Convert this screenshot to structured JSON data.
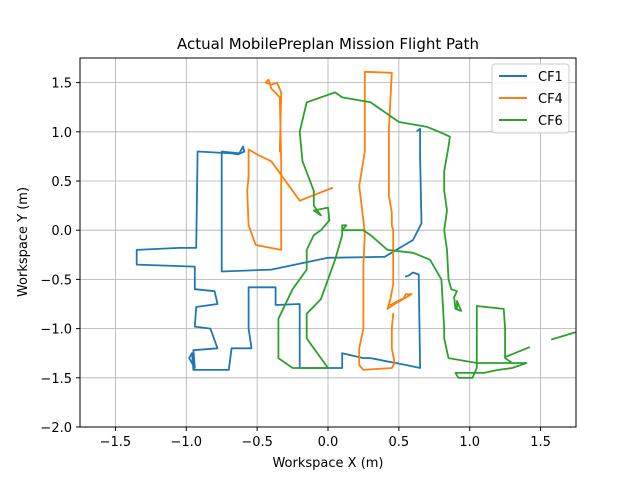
{
  "chart_data": {
    "type": "line",
    "title": "Actual MobilePreplan Mission Flight Path",
    "xlabel": "Workspace X (m)",
    "ylabel": "Workspace Y (m)",
    "xlim": [
      -1.75,
      1.75
    ],
    "ylim": [
      -2.0,
      1.75
    ],
    "xticks": [
      -1.5,
      -1.0,
      -0.5,
      0.0,
      0.5,
      1.0,
      1.5
    ],
    "xtick_labels": [
      "−1.5",
      "−1.0",
      "−0.5",
      "0.0",
      "0.5",
      "1.0",
      "1.5"
    ],
    "yticks": [
      -2.0,
      -1.5,
      -1.0,
      -0.5,
      0.0,
      0.5,
      1.0,
      1.5
    ],
    "ytick_labels": [
      "−2.0",
      "−1.5",
      "−1.0",
      "−0.5",
      "0.0",
      "0.5",
      "1.0",
      "1.5"
    ],
    "grid": true,
    "legend": "top-right",
    "series": [
      {
        "name": "CF1",
        "color": "#1f77b4",
        "segments": [
          [
            [
              0.63,
              1.01
            ],
            [
              0.65,
              1.03
            ],
            [
              0.65,
              0.74
            ],
            [
              0.66,
              0.07
            ],
            [
              0.6,
              -0.1
            ],
            [
              0.4,
              -0.27
            ],
            [
              0.0,
              -0.28
            ],
            [
              -0.4,
              -0.4
            ],
            [
              -0.75,
              -0.42
            ],
            [
              -0.75,
              0.6
            ],
            [
              -0.75,
              0.62
            ],
            [
              -0.75,
              0.8
            ],
            [
              -0.62,
              0.78
            ],
            [
              -0.59,
              0.8
            ],
            [
              -0.6,
              0.85
            ],
            [
              -0.63,
              0.77
            ],
            [
              -0.68,
              0.78
            ],
            [
              -0.92,
              0.8
            ],
            [
              -0.93,
              -0.18
            ],
            [
              -1.05,
              -0.18
            ],
            [
              -1.35,
              -0.2
            ],
            [
              -1.35,
              -0.35
            ],
            [
              -0.94,
              -0.37
            ],
            [
              -0.94,
              -0.6
            ],
            [
              -0.8,
              -0.62
            ],
            [
              -0.78,
              -0.75
            ],
            [
              -0.93,
              -0.78
            ],
            [
              -0.94,
              -0.98
            ],
            [
              -0.83,
              -1.0
            ],
            [
              -0.78,
              -1.2
            ],
            [
              -0.95,
              -1.22
            ],
            [
              -0.94,
              -1.4
            ],
            [
              -0.98,
              -1.3
            ],
            [
              -0.96,
              -1.25
            ],
            [
              -0.95,
              -1.42
            ],
            [
              -0.7,
              -1.42
            ],
            [
              -0.68,
              -1.2
            ],
            [
              -0.54,
              -1.2
            ],
            [
              -0.56,
              -1.0
            ],
            [
              -0.56,
              -0.58
            ],
            [
              -0.37,
              -0.58
            ],
            [
              -0.37,
              -0.76
            ],
            [
              -0.2,
              -0.75
            ],
            [
              -0.2,
              -1.4
            ],
            [
              0.1,
              -1.4
            ],
            [
              0.1,
              -1.25
            ],
            [
              0.25,
              -1.3
            ],
            [
              0.3,
              -1.3
            ],
            [
              0.55,
              -1.37
            ],
            [
              0.65,
              -1.4
            ],
            [
              0.64,
              -0.45
            ],
            [
              0.6,
              -0.43
            ],
            [
              0.57,
              -0.46
            ],
            [
              0.55,
              -0.47
            ]
          ]
        ]
      },
      {
        "name": "CF4",
        "color": "#ff7f0e",
        "segments": [
          [
            [
              0.03,
              0.43
            ],
            [
              -0.2,
              0.3
            ],
            [
              -0.4,
              0.7
            ],
            [
              -0.5,
              0.77
            ],
            [
              -0.56,
              0.82
            ],
            [
              -0.56,
              0.55
            ],
            [
              -0.57,
              0.4
            ],
            [
              -0.56,
              0.05
            ],
            [
              -0.51,
              -0.15
            ],
            [
              -0.33,
              -0.2
            ],
            [
              -0.33,
              0.7
            ],
            [
              -0.34,
              1.35
            ],
            [
              -0.4,
              1.44
            ],
            [
              -0.42,
              1.53
            ],
            [
              -0.44,
              1.5
            ],
            [
              -0.4,
              1.48
            ],
            [
              -0.36,
              1.5
            ],
            [
              -0.33,
              1.4
            ],
            [
              -0.34,
              0.8
            ]
          ],
          [
            [
              0.52,
              -0.7
            ],
            [
              0.44,
              -0.76
            ],
            [
              0.53,
              -0.7
            ],
            [
              0.55,
              -0.65
            ],
            [
              0.59,
              -0.65
            ],
            [
              0.53,
              -0.7
            ],
            [
              0.47,
              -0.75
            ],
            [
              0.42,
              -0.8
            ],
            [
              0.44,
              -0.7
            ],
            [
              0.46,
              -0.55
            ],
            [
              0.46,
              -0.45
            ],
            [
              0.46,
              -0.35
            ],
            [
              0.46,
              -0.25
            ],
            [
              0.46,
              -0.1
            ],
            [
              0.46,
              0.0
            ],
            [
              0.45,
              0.05
            ],
            [
              0.45,
              0.18
            ],
            [
              0.43,
              0.35
            ],
            [
              0.43,
              0.6
            ],
            [
              0.43,
              0.8
            ],
            [
              0.43,
              1.03
            ],
            [
              0.45,
              1.6
            ],
            [
              0.26,
              1.61
            ],
            [
              0.26,
              1.2
            ],
            [
              0.26,
              0.8
            ],
            [
              0.22,
              0.45
            ],
            [
              0.25,
              0.1
            ],
            [
              0.26,
              -0.05
            ],
            [
              0.25,
              -0.35
            ],
            [
              0.25,
              -0.6
            ],
            [
              0.25,
              -1.0
            ],
            [
              0.22,
              -1.2
            ],
            [
              0.22,
              -1.37
            ],
            [
              0.25,
              -1.42
            ],
            [
              0.45,
              -1.4
            ],
            [
              0.47,
              -1.35
            ],
            [
              0.45,
              -1.2
            ],
            [
              0.45,
              -1.0
            ],
            [
              0.46,
              -0.85
            ]
          ]
        ]
      },
      {
        "name": "CF6",
        "color": "#2ca02c",
        "segments": [
          [
            [
              0.91,
              -0.8
            ],
            [
              0.91,
              -0.72
            ],
            [
              0.94,
              -0.82
            ],
            [
              0.9,
              -0.8
            ],
            [
              0.89,
              -0.68
            ],
            [
              0.91,
              -0.62
            ],
            [
              0.87,
              -0.6
            ],
            [
              0.85,
              -0.5
            ],
            [
              0.84,
              -0.2
            ],
            [
              0.82,
              0.0
            ],
            [
              0.84,
              0.2
            ],
            [
              0.82,
              0.4
            ],
            [
              0.82,
              0.6
            ],
            [
              0.85,
              0.85
            ],
            [
              0.86,
              0.95
            ],
            [
              0.8,
              0.99
            ],
            [
              0.7,
              1.05
            ],
            [
              0.5,
              1.1
            ],
            [
              0.3,
              1.3
            ],
            [
              0.1,
              1.35
            ],
            [
              0.05,
              1.4
            ],
            [
              -0.15,
              1.3
            ],
            [
              -0.2,
              1.0
            ],
            [
              -0.18,
              0.7
            ],
            [
              -0.1,
              0.4
            ],
            [
              -0.1,
              0.25
            ],
            [
              -0.05,
              0.15
            ],
            [
              -0.1,
              0.2
            ],
            [
              0.0,
              0.23
            ],
            [
              0.01,
              0.1
            ],
            [
              -0.05,
              0.0
            ],
            [
              -0.1,
              -0.05
            ],
            [
              -0.15,
              -0.2
            ],
            [
              -0.15,
              -0.4
            ],
            [
              -0.25,
              -0.6
            ],
            [
              -0.35,
              -0.9
            ],
            [
              -0.35,
              -1.3
            ],
            [
              -0.25,
              -1.4
            ],
            [
              -0.1,
              -1.4
            ],
            [
              -0.05,
              -1.4
            ],
            [
              0.0,
              -1.4
            ],
            [
              -0.05,
              -1.3
            ],
            [
              -0.1,
              -1.2
            ],
            [
              -0.15,
              -1.1
            ],
            [
              -0.15,
              -0.85
            ],
            [
              -0.05,
              -0.7
            ],
            [
              0.0,
              -0.5
            ],
            [
              0.05,
              -0.3
            ],
            [
              0.1,
              -0.05
            ],
            [
              0.1,
              0.0
            ],
            [
              0.1,
              0.05
            ],
            [
              0.13,
              0.05
            ],
            [
              0.1,
              0.0
            ],
            [
              0.25,
              0.0
            ],
            [
              0.3,
              -0.05
            ],
            [
              0.42,
              -0.2
            ],
            [
              0.6,
              -0.23
            ],
            [
              0.72,
              -0.3
            ],
            [
              0.8,
              -0.5
            ],
            [
              0.82,
              -1.0
            ],
            [
              0.82,
              -1.1
            ],
            [
              0.85,
              -1.3
            ],
            [
              1.05,
              -1.35
            ],
            [
              1.05,
              -1.4
            ],
            [
              1.02,
              -1.5
            ],
            [
              0.92,
              -1.5
            ],
            [
              0.9,
              -1.45
            ],
            [
              1.1,
              -1.45
            ],
            [
              1.2,
              -1.42
            ],
            [
              1.3,
              -1.4
            ],
            [
              1.4,
              -1.35
            ],
            [
              1.3,
              -1.35
            ],
            [
              1.25,
              -1.3
            ],
            [
              1.25,
              -1.0
            ],
            [
              1.24,
              -0.8
            ],
            [
              1.05,
              -0.77
            ],
            [
              1.05,
              -1.0
            ],
            [
              1.05,
              -1.35
            ],
            [
              1.25,
              -1.35
            ],
            [
              1.3,
              -1.35
            ]
          ],
          [
            [
              1.25,
              -1.29
            ],
            [
              1.42,
              -1.19
            ]
          ],
          [
            [
              1.58,
              -1.11
            ],
            [
              1.74,
              -1.04
            ]
          ]
        ]
      }
    ]
  }
}
